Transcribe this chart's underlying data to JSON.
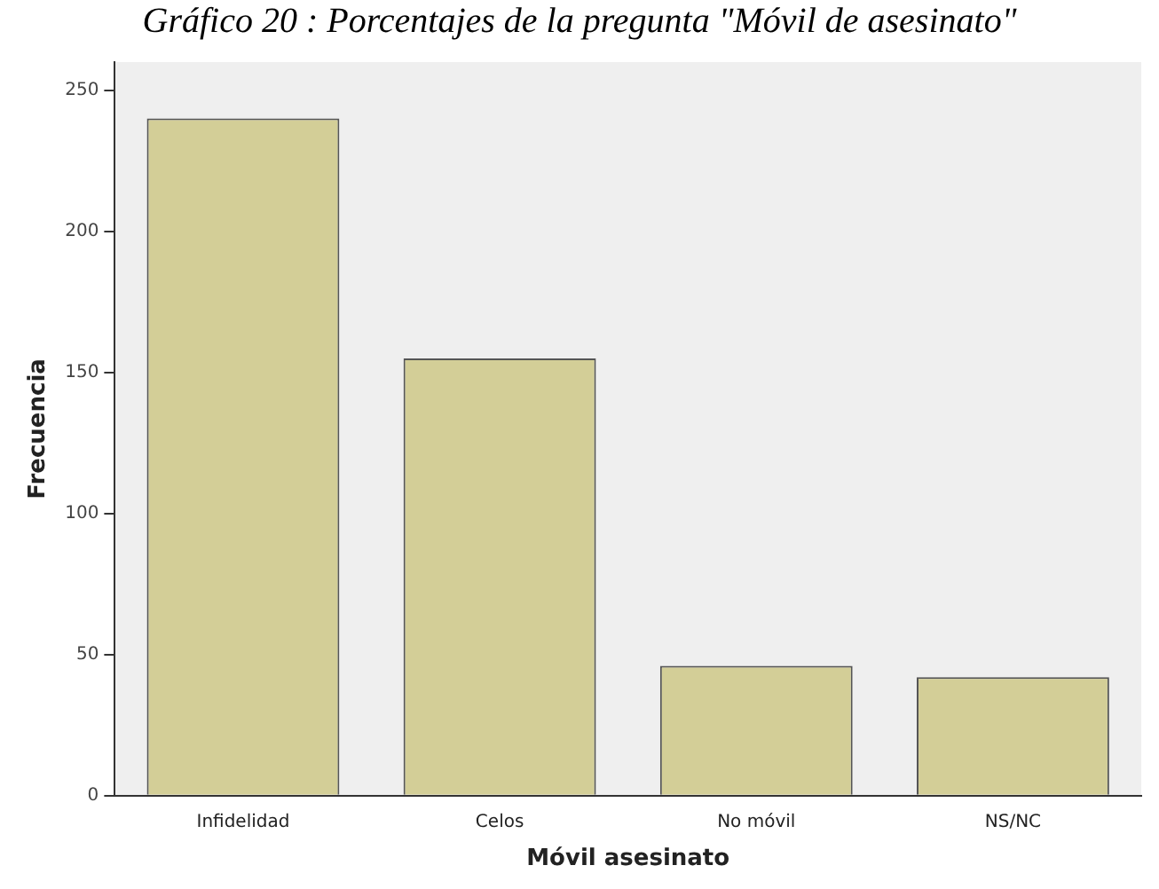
{
  "chart_data": {
    "type": "bar",
    "title": "Gráfico 20 : Porcentajes de la pregunta \"Móvil de asesinato\"",
    "xlabel": "Móvil asesinato",
    "ylabel": "Frecuencia",
    "categories": [
      "Infidelidad",
      "Celos",
      "No móvil",
      "NS/NC"
    ],
    "values": [
      240,
      155,
      46,
      42
    ],
    "color": "#d3ce97",
    "ylim": [
      0,
      260
    ],
    "yticks": [
      0,
      50,
      100,
      150,
      200,
      250
    ],
    "grid": false,
    "legend": false
  }
}
